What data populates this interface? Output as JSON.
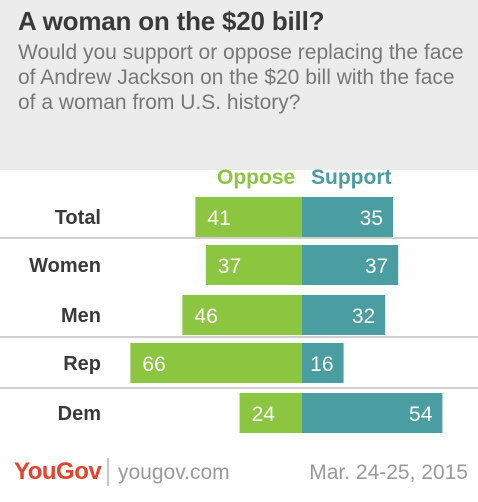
{
  "chart_data": {
    "type": "bar",
    "title": "A woman on the $20 bill?",
    "subtitle": "Would you support or oppose replacing the face of Andrew Jackson on the $20 bill with the face of a woman from U.S. history?",
    "categories": [
      "Total",
      "Women",
      "Men",
      "Rep",
      "Dem"
    ],
    "series": [
      {
        "name": "Oppose",
        "values": [
          41,
          37,
          46,
          66,
          24
        ],
        "color": "#8cc540"
      },
      {
        "name": "Support",
        "values": [
          35,
          37,
          32,
          16,
          54
        ],
        "color": "#4a9ea1"
      }
    ],
    "layout": "diverging",
    "grid": false,
    "legend": "top-center"
  },
  "footer": {
    "brand": "YouGov",
    "url": "yougov.com",
    "date": "Mar. 24-25, 2015"
  },
  "colors": {
    "oppose": "#8cc540",
    "support": "#4a9ea1",
    "brand": "#e8412b",
    "header_bg": "#ececec"
  }
}
